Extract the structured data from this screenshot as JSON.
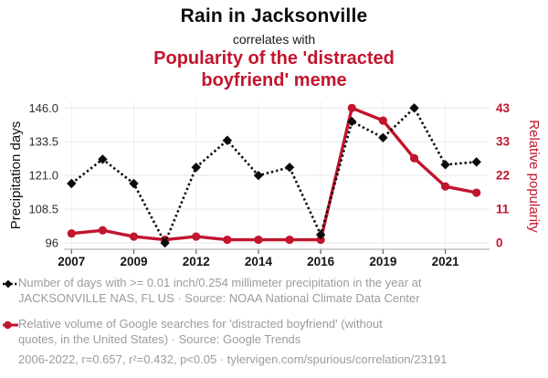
{
  "header": {
    "title": "Rain in Jacksonville",
    "connector": "correlates with",
    "subtitle_lines": [
      "Popularity of the 'distracted",
      "boyfriend' meme"
    ]
  },
  "colors": {
    "accent_red": "#c2152e",
    "series_black": "#0b0b0b",
    "legend_gray": "#9c9c9c",
    "gridline_gray": "#e7e7e7"
  },
  "chart_data": {
    "type": "line",
    "title": "Rain in Jacksonville correlates with Popularity of the 'distracted boyfriend' meme",
    "x": [
      2007,
      2008,
      2009,
      2011,
      2012,
      2013,
      2014,
      2015,
      2016,
      2018,
      2019,
      2020,
      2021,
      2022
    ],
    "series": [
      {
        "name": "Number of days with >= 0.01 inch/0.254 millimeter precipitation in the year at JACKSONVILLE NAS, FL US",
        "axis": "left",
        "color": "#0b0b0b",
        "marker": "diamond",
        "line_style": "dotted",
        "values": [
          118,
          127,
          118,
          96,
          124,
          134,
          121,
          124,
          99,
          141,
          135,
          146,
          125,
          126
        ]
      },
      {
        "name": "Relative volume of Google searches for 'distracted boyfriend' (without quotes, in the United States)",
        "axis": "right",
        "color": "#c2152e",
        "marker": "circle",
        "line_style": "solid",
        "values": [
          3,
          4,
          2,
          1,
          2,
          1,
          1,
          1,
          1,
          43,
          39,
          27,
          18,
          16
        ]
      }
    ],
    "left_axis": {
      "label": "Precipitation days",
      "ticks": [
        "146.0",
        "133.5",
        "121.0",
        "108.5",
        "96"
      ],
      "range": [
        96,
        146
      ]
    },
    "right_axis": {
      "label": "Relative popularity",
      "ticks": [
        "43",
        "33",
        "22",
        "11",
        "0"
      ],
      "range": [
        0,
        43
      ]
    },
    "x_ticks": {
      "indices": [
        0,
        2,
        4,
        6,
        8,
        10,
        12
      ],
      "labels": [
        "2007",
        "2009",
        "2012",
        "2014",
        "2016",
        "2019",
        "2021"
      ]
    },
    "grid": "on",
    "legend_position": "bottom"
  },
  "legend": {
    "entries": [
      {
        "icon": "black-diamond-dotted-line-icon",
        "lines": [
          "Number of days with >= 0.01 inch/0.254 millimeter precipitation in the year at",
          "JACKSONVILLE NAS, FL US · Source: NOAA National Climate Data Center"
        ]
      },
      {
        "icon": "red-circle-solid-line-icon",
        "lines": [
          "Relative volume of Google searches for 'distracted boyfriend' (without",
          "quotes, in the United States) · Source: Google Trends"
        ]
      }
    ]
  },
  "footer": {
    "stats_line": "2006-2022, r=0.657, r²=0.432, p<0.05 · tylervigen.com/spurious/correlation/23191"
  }
}
